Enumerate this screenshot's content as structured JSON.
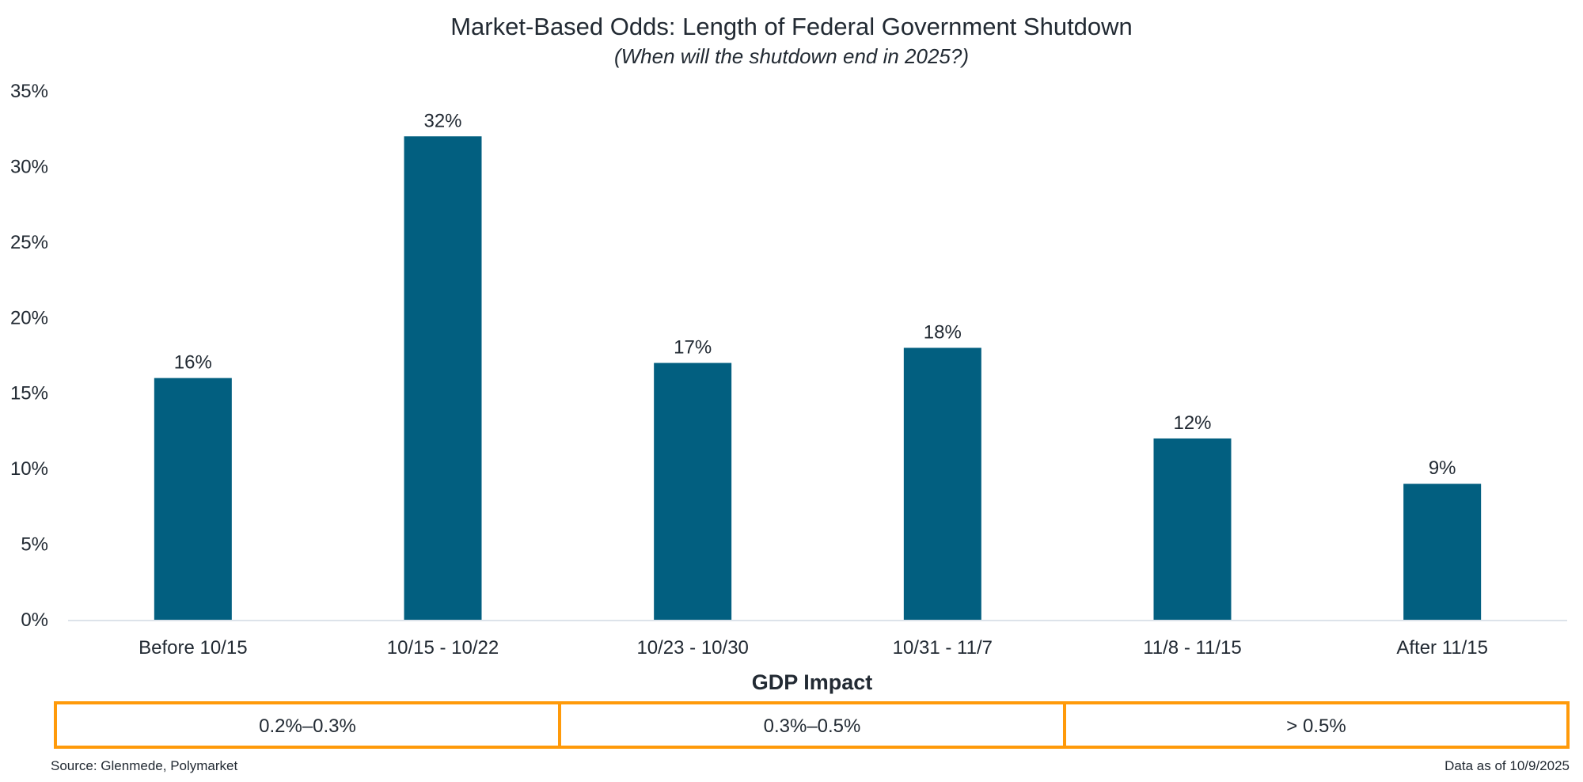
{
  "chart_data": {
    "type": "bar",
    "title": "Market-Based Odds: Length of Federal Government Shutdown",
    "subtitle": "(When will the shutdown end in 2025?)",
    "xlabel": "",
    "ylabel": "",
    "categories": [
      "Before 10/15",
      "10/15 - 10/22",
      "10/23 - 10/30",
      "10/31 - 11/7",
      "11/8 - 11/15",
      "After 11/15"
    ],
    "values": [
      16,
      32,
      17,
      18,
      12,
      9
    ],
    "data_labels": [
      "16%",
      "32%",
      "17%",
      "18%",
      "12%",
      "9%"
    ],
    "ylim": [
      0,
      35
    ],
    "yticks": [
      0,
      5,
      10,
      15,
      20,
      25,
      30,
      35
    ],
    "ytick_labels": [
      "0%",
      "5%",
      "10%",
      "15%",
      "20%",
      "25%",
      "30%",
      "35%"
    ],
    "grid": false,
    "legend": null,
    "bar_color": "#025f80",
    "axis_color": "#dde3ea"
  },
  "gdp_impact": {
    "title": "GDP Impact",
    "cells": [
      "0.2%–0.3%",
      "0.3%–0.5%",
      "> 0.5%"
    ],
    "border_color": "#ff9a0a"
  },
  "footer": {
    "source": "Source: Glenmede, Polymarket",
    "as_of": "Data as of 10/9/2025"
  }
}
